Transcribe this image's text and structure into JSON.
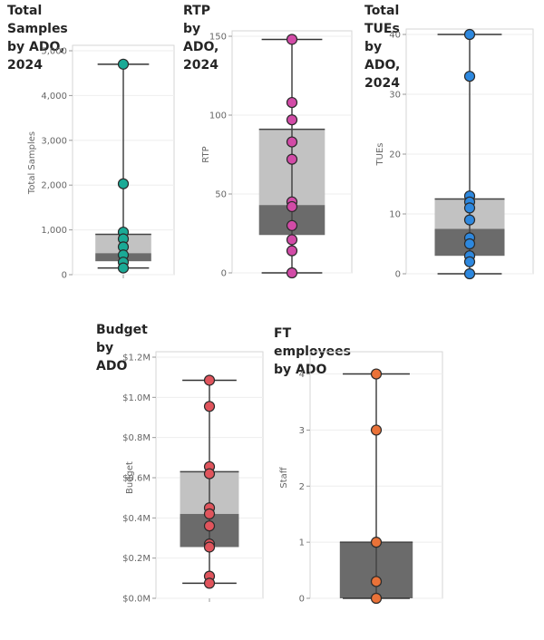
{
  "chart_data": [
    {
      "type": "box",
      "title": "Total Samples by ADO,\n2024",
      "ylabel": "Total Samples",
      "ylim": [
        0,
        5000
      ],
      "yticks": [
        0,
        1000,
        2000,
        3000,
        4000,
        5000
      ],
      "ytick_labels": [
        "0",
        "1,000",
        "2,000",
        "3,000",
        "4,000",
        "5,000"
      ],
      "whisker_low": 150,
      "q1": 300,
      "median": 480,
      "q3": 900,
      "whisker_high": 4700,
      "points": [
        4700,
        2030,
        950,
        800,
        620,
        440,
        280,
        150
      ],
      "point_color": "#1aaa96"
    },
    {
      "type": "box",
      "title": "RTP by ADO, 2024",
      "ylabel": "RTP",
      "ylim": [
        0,
        150
      ],
      "yticks": [
        0,
        50,
        100,
        150
      ],
      "ytick_labels": [
        "0",
        "50",
        "100",
        "150"
      ],
      "whisker_low": 0,
      "q1": 24,
      "median": 43,
      "q3": 91,
      "whisker_high": 148,
      "points": [
        148,
        108,
        97,
        83,
        72,
        45,
        42,
        30,
        21,
        14,
        0
      ],
      "point_color": "#d24ba7"
    },
    {
      "type": "box",
      "title": "Total TUEs by ADO, 2024",
      "ylabel": "TUEs",
      "ylim": [
        0,
        40
      ],
      "yticks": [
        0,
        10,
        20,
        30,
        40
      ],
      "ytick_labels": [
        "0",
        "10",
        "20",
        "30",
        "40"
      ],
      "whisker_low": 0,
      "q1": 3,
      "median": 7.5,
      "q3": 12.5,
      "whisker_high": 40,
      "points": [
        40,
        33,
        13,
        12,
        11,
        9,
        6,
        5,
        3,
        2,
        0
      ],
      "point_color": "#2d88df"
    },
    {
      "type": "box",
      "title": "Budget by ADO",
      "ylabel": "Budget",
      "ylim": [
        0,
        1200000
      ],
      "yticks": [
        0,
        200000,
        400000,
        600000,
        800000,
        1000000,
        1200000
      ],
      "ytick_labels": [
        "$0.0M",
        "$0.2M",
        "$0.4M",
        "$0.6M",
        "$0.8M",
        "$1.0M",
        "$1.2M"
      ],
      "whisker_low": 75000,
      "q1": 255000,
      "median": 420000,
      "q3": 630000,
      "whisker_high": 1085000,
      "points": [
        1085000,
        955000,
        655000,
        620000,
        450000,
        420000,
        360000,
        270000,
        255000,
        110000,
        75000
      ],
      "point_color": "#e0545c"
    },
    {
      "type": "box",
      "title": "FT employees by ADO",
      "ylabel": "Staff",
      "ylim": [
        0,
        4.3
      ],
      "yticks": [
        0,
        1,
        2,
        3,
        4
      ],
      "ytick_labels": [
        "0",
        "1",
        "2",
        "3",
        "4"
      ],
      "whisker_low": 0,
      "q1": 0,
      "median": 0,
      "q3": 1,
      "whisker_high": 4,
      "points": [
        4,
        3,
        1,
        0.3,
        0
      ],
      "point_color": "#ea7238"
    }
  ]
}
